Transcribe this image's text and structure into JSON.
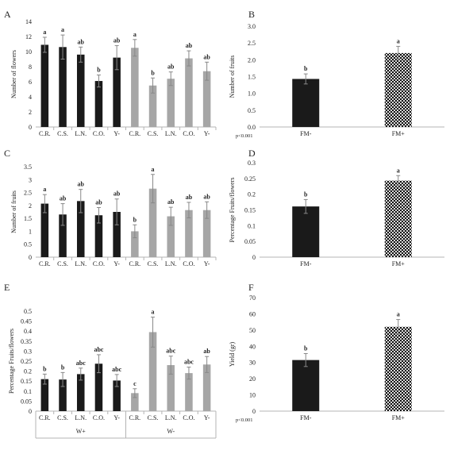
{
  "colors": {
    "dark_bar": "#1a1a1a",
    "light_bar": "#a6a6a6",
    "pattern_fg": "#111111",
    "pattern_bg": "#d9d9d9",
    "error_bar": "#888888",
    "axis": "#b4b4b4"
  },
  "chart_data": [
    {
      "panel_label": "A",
      "type": "bar",
      "ylabel": "Number of flowers",
      "ylim": [
        0,
        14
      ],
      "yticks": [
        0,
        2,
        4,
        6,
        8,
        10,
        12,
        14
      ],
      "categories": [
        "C.R.",
        "C.S.",
        "L.N.",
        "C.O.",
        "Y-",
        "C.R.",
        "C.S.",
        "L.N.",
        "C.O.",
        "Y-"
      ],
      "series": [
        {
          "values": [
            10.9,
            10.6,
            9.6,
            6.1,
            9.2,
            null,
            null,
            null,
            null,
            null
          ],
          "errors": [
            1.0,
            1.6,
            1.0,
            0.8,
            1.6,
            null,
            null,
            null,
            null,
            null
          ],
          "color": "dark"
        },
        {
          "values": [
            null,
            null,
            null,
            null,
            null,
            10.5,
            5.5,
            6.4,
            9.1,
            7.4
          ],
          "errors": [
            null,
            null,
            null,
            null,
            null,
            1.1,
            1.0,
            0.9,
            1.0,
            1.2
          ],
          "color": "light"
        }
      ],
      "letters": [
        "a",
        "a",
        "ab",
        "b",
        "ab",
        "a",
        "b",
        "ab",
        "ab",
        "ab"
      ]
    },
    {
      "panel_label": "B",
      "type": "bar",
      "ylabel": "Number of fruits",
      "ylim": [
        0,
        3.0
      ],
      "yticks": [
        "0.0",
        "0.5",
        "1.0",
        "1.5",
        "2.0",
        "2.5",
        "3.0"
      ],
      "categories": [
        "FM-",
        "FM+"
      ],
      "values": [
        1.43,
        2.2
      ],
      "errors": [
        0.15,
        0.2
      ],
      "bar_styles": [
        "solid",
        "pattern"
      ],
      "letters": [
        "b",
        "a"
      ],
      "annotation": "p<0.001"
    },
    {
      "panel_label": "C",
      "type": "bar",
      "ylabel": "Number of fruits",
      "ylim": [
        0,
        3.5
      ],
      "yticks": [
        "0",
        "0.5",
        "1",
        "1.5",
        "2",
        "2.5",
        "3",
        "3.5"
      ],
      "categories": [
        "C.R.",
        "C.S.",
        "L.N.",
        "C.O.",
        "Y-",
        "C.R.",
        "C.S.",
        "L.N.",
        "C.O.",
        "Y-"
      ],
      "series": [
        {
          "values": [
            2.07,
            1.65,
            2.17,
            1.62,
            1.75,
            null,
            null,
            null,
            null,
            null
          ],
          "errors": [
            0.35,
            0.42,
            0.45,
            0.3,
            0.5,
            null,
            null,
            null,
            null,
            null
          ],
          "color": "dark"
        },
        {
          "values": [
            null,
            null,
            null,
            null,
            null,
            1.0,
            2.65,
            1.58,
            1.82,
            1.82
          ],
          "errors": [
            null,
            null,
            null,
            null,
            null,
            0.25,
            0.55,
            0.35,
            0.3,
            0.32
          ],
          "color": "light"
        }
      ],
      "letters": [
        "a",
        "ab",
        "ab",
        "ab",
        "ab",
        "b",
        "a",
        "ab",
        "ab",
        "ab"
      ]
    },
    {
      "panel_label": "D",
      "type": "bar",
      "ylabel": "Percentage Fruits/flowers",
      "ylim": [
        0,
        0.3
      ],
      "yticks": [
        "0",
        "0.05",
        "0.1",
        "0.15",
        "0.2",
        "0.25",
        "0.3"
      ],
      "categories": [
        "FM-",
        "FM+"
      ],
      "values": [
        0.161,
        0.243
      ],
      "errors": [
        0.022,
        0.016
      ],
      "bar_styles": [
        "solid",
        "pattern"
      ],
      "letters": [
        "b",
        "a"
      ]
    },
    {
      "panel_label": "E",
      "type": "bar",
      "ylabel": "Percentage Fruits/flowers",
      "ylim": [
        0,
        0.5
      ],
      "yticks": [
        "0",
        "0.05",
        "0.1",
        "0.15",
        "0.2",
        "0.25",
        "0.3",
        "0.35",
        "0.4",
        "0.45",
        "0.5"
      ],
      "categories": [
        "C.R.",
        "C.S.",
        "L.N.",
        "C.O.",
        "Y-",
        "C.R.",
        "C.S.",
        "L.N.",
        "C.O.",
        "Y-"
      ],
      "groups": [
        "W+",
        "W-"
      ],
      "series": [
        {
          "values": [
            0.16,
            0.158,
            0.185,
            0.237,
            0.153,
            null,
            null,
            null,
            null,
            null
          ],
          "errors": [
            0.025,
            0.035,
            0.03,
            0.045,
            0.03,
            null,
            null,
            null,
            null,
            null
          ],
          "color": "dark"
        },
        {
          "values": [
            null,
            null,
            null,
            null,
            null,
            0.09,
            0.395,
            0.23,
            0.19,
            0.233
          ],
          "errors": [
            null,
            null,
            null,
            null,
            null,
            0.022,
            0.075,
            0.045,
            0.03,
            0.04
          ],
          "color": "light"
        }
      ],
      "letters": [
        "b",
        "b",
        "abc",
        "abc",
        "abc",
        "c",
        "a",
        "abc",
        "abc",
        "ab"
      ]
    },
    {
      "panel_label": "F",
      "type": "bar",
      "ylabel": "Yield (gr)",
      "ylim": [
        0,
        70
      ],
      "yticks": [
        "0",
        "10",
        "20",
        "30",
        "40",
        "50",
        "60",
        "70"
      ],
      "categories": [
        "FM-",
        "FM+"
      ],
      "values": [
        31.5,
        52.0
      ],
      "errors": [
        4.0,
        4.5
      ],
      "bar_styles": [
        "solid",
        "pattern"
      ],
      "letters": [
        "b",
        "a"
      ],
      "annotation": "p<0.001"
    }
  ]
}
